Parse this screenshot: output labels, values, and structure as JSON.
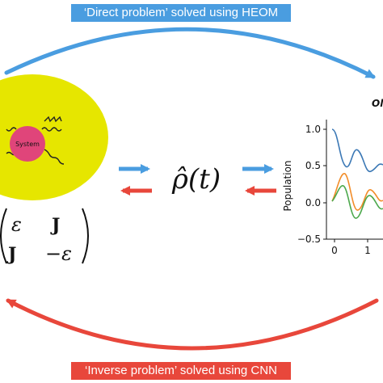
{
  "banners": {
    "top": "‘Direct problem’ solved using HEOM",
    "bottom": "‘Inverse problem’ solved using CNN"
  },
  "system_label": "System",
  "rho_label": "ρ̂(t)",
  "hamiltonian": {
    "a11": "ε",
    "a12": "J",
    "a21": "J",
    "a22": "−ε"
  },
  "plot": {
    "title_fragment": "Ol",
    "ylabel": "Population",
    "yticks": [
      "1.0",
      "0.5",
      "0.0",
      "−0.5"
    ],
    "xticks": [
      "0",
      "1"
    ]
  },
  "colors": {
    "direct": "#4a9de0",
    "inverse": "#e8473b",
    "bath": "#e6e600",
    "system": "#e0457a",
    "series_blue": "#3b78b5",
    "series_orange": "#f28c28",
    "series_green": "#4ca84c"
  }
}
